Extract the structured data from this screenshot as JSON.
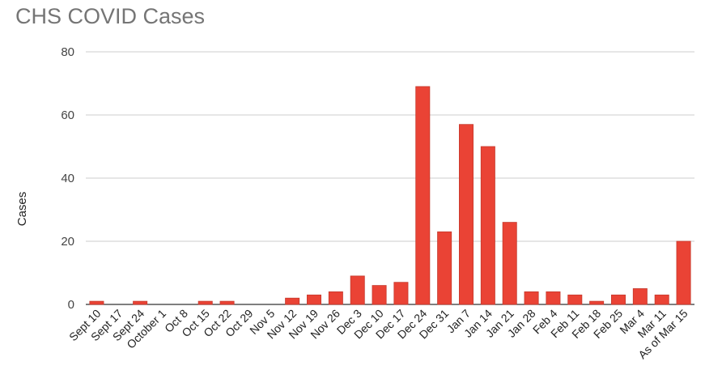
{
  "chart_data": {
    "type": "bar",
    "title": "CHS COVID Cases",
    "xlabel": "",
    "ylabel": "Cases",
    "ylim": [
      0,
      80
    ],
    "yticks": [
      0,
      20,
      40,
      60,
      80
    ],
    "grid": true,
    "bar_color": "#ea4335",
    "categories": [
      "Sept 10",
      "Sept 17",
      "Sept 24",
      "October 1",
      "Oct 8",
      "Oct 15",
      "Oct 22",
      "Oct 29",
      "Nov 5",
      "Nov 12",
      "Nov 19",
      "Nov 26",
      "Dec 3",
      "Dec 10",
      "Dec 17",
      "Dec 24",
      "Dec 31",
      "Jan 7",
      "Jan 14",
      "Jan 21",
      "Jan 28",
      "Feb 4",
      "Feb 11",
      "Feb 18",
      "Feb 25",
      "Mar 4",
      "Mar 11",
      "As of Mar 15"
    ],
    "values": [
      1,
      0,
      1,
      0,
      0,
      1,
      1,
      0,
      0,
      2,
      3,
      4,
      9,
      6,
      7,
      69,
      23,
      57,
      50,
      26,
      4,
      4,
      3,
      1,
      3,
      5,
      3,
      20
    ]
  }
}
